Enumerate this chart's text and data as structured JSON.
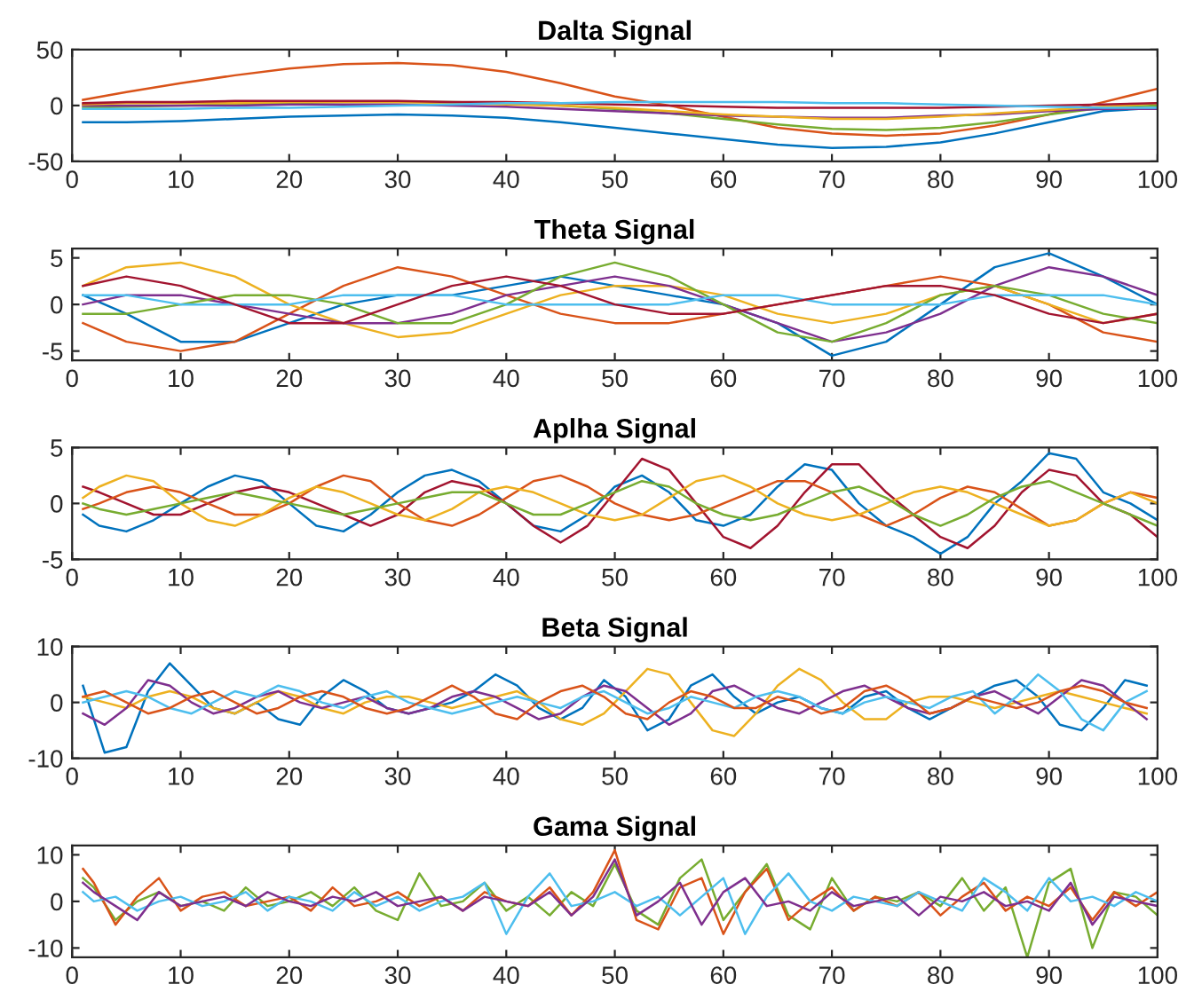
{
  "chart_data": [
    {
      "type": "line",
      "title": "Dalta Signal",
      "x": [
        1,
        5,
        10,
        15,
        20,
        25,
        30,
        35,
        40,
        45,
        50,
        55,
        60,
        65,
        70,
        75,
        80,
        85,
        90,
        95,
        100
      ],
      "xlim": [
        0,
        100
      ],
      "xticks": [
        0,
        10,
        20,
        30,
        40,
        50,
        60,
        70,
        80,
        90,
        100
      ],
      "ylim": [
        -50,
        50
      ],
      "yticks": [
        -50,
        0,
        50
      ],
      "grid": false,
      "legend": false,
      "series": [
        {
          "color": "#d95319",
          "values": [
            5,
            12,
            20,
            27,
            33,
            37,
            38,
            36,
            30,
            20,
            8,
            0,
            -10,
            -20,
            -25,
            -27,
            -25,
            -18,
            -8,
            3,
            15
          ]
        },
        {
          "color": "#0072bd",
          "values": [
            -15,
            -15,
            -14,
            -12,
            -10,
            -9,
            -8,
            -9,
            -11,
            -15,
            -20,
            -25,
            -30,
            -35,
            -38,
            -37,
            -33,
            -25,
            -15,
            -5,
            -2
          ]
        },
        {
          "color": "#77ac30",
          "values": [
            -2,
            -1,
            0,
            1,
            2,
            3,
            3,
            3,
            2,
            0,
            -3,
            -7,
            -12,
            -17,
            -21,
            -22,
            -20,
            -15,
            -8,
            -2,
            0
          ]
        },
        {
          "color": "#7e2f8e",
          "values": [
            0,
            0,
            0,
            0,
            1,
            1,
            1,
            0,
            -1,
            -3,
            -5,
            -7,
            -9,
            -10,
            -11,
            -11,
            -9,
            -8,
            -5,
            -3,
            -3
          ]
        },
        {
          "color": "#edb120",
          "values": [
            1,
            2,
            2,
            2,
            3,
            3,
            3,
            2,
            1,
            0,
            -2,
            -5,
            -8,
            -10,
            -12,
            -12,
            -10,
            -7,
            -4,
            -1,
            2
          ]
        },
        {
          "color": "#a2142f",
          "values": [
            2,
            3,
            3,
            4,
            4,
            4,
            4,
            3,
            3,
            2,
            1,
            0,
            -1,
            -2,
            -2,
            -2,
            -2,
            -1,
            0,
            1,
            2
          ]
        },
        {
          "color": "#4dbeee",
          "values": [
            -3,
            -3,
            -3,
            -2,
            -2,
            -1,
            0,
            1,
            2,
            2,
            3,
            3,
            3,
            3,
            2,
            2,
            1,
            0,
            -1,
            -2,
            -2
          ]
        }
      ]
    },
    {
      "type": "line",
      "title": "Theta Signal",
      "x": [
        1,
        5,
        10,
        15,
        20,
        25,
        30,
        35,
        40,
        45,
        50,
        55,
        60,
        65,
        70,
        75,
        80,
        85,
        90,
        95,
        100
      ],
      "xlim": [
        0,
        100
      ],
      "xticks": [
        0,
        10,
        20,
        30,
        40,
        50,
        60,
        70,
        80,
        90,
        100
      ],
      "ylim": [
        -6,
        6
      ],
      "yticks": [
        -5,
        0,
        5
      ],
      "grid": false,
      "legend": false,
      "series": [
        {
          "color": "#0072bd",
          "values": [
            1,
            -1,
            -4,
            -4,
            -2,
            0,
            1,
            1,
            2,
            3,
            2,
            1,
            0,
            -2,
            -5.5,
            -4,
            0,
            4,
            5.5,
            3,
            0
          ]
        },
        {
          "color": "#d95319",
          "values": [
            -2,
            -4,
            -5,
            -4,
            -1,
            2,
            4,
            3,
            1,
            -1,
            -2,
            -2,
            -1,
            0,
            1,
            2,
            3,
            2,
            0,
            -3,
            -4
          ]
        },
        {
          "color": "#edb120",
          "values": [
            2,
            4,
            4.5,
            3,
            0,
            -2,
            -3.5,
            -3,
            -1,
            1,
            2,
            2,
            1,
            -1,
            -2,
            -1,
            1,
            2,
            0,
            -2,
            -1
          ]
        },
        {
          "color": "#7e2f8e",
          "values": [
            0,
            1,
            1,
            0,
            -1,
            -2,
            -2,
            -1,
            1,
            2,
            3,
            2,
            0,
            -2,
            -4,
            -3,
            -1,
            2,
            4,
            3,
            1
          ]
        },
        {
          "color": "#77ac30",
          "values": [
            -1,
            -1,
            0,
            1,
            1,
            0,
            -2,
            -2,
            0,
            3,
            4.5,
            3,
            0,
            -3,
            -4,
            -2,
            1,
            2,
            1,
            -1,
            -2
          ]
        },
        {
          "color": "#4dbeee",
          "values": [
            1,
            1,
            0,
            0,
            0,
            1,
            1,
            1,
            0,
            0,
            0,
            0,
            1,
            1,
            0,
            0,
            0,
            1,
            1,
            1,
            0
          ]
        },
        {
          "color": "#a2142f",
          "values": [
            2,
            3,
            2,
            0,
            -2,
            -2,
            0,
            2,
            3,
            2,
            0,
            -1,
            -1,
            0,
            1,
            2,
            2,
            1,
            -1,
            -2,
            -1
          ]
        }
      ]
    },
    {
      "type": "line",
      "title": "Aplha Signal",
      "x": [
        1,
        2.5,
        5,
        7.5,
        10,
        12.5,
        15,
        17.5,
        20,
        22.5,
        25,
        27.5,
        30,
        32.5,
        35,
        37.5,
        40,
        42.5,
        45,
        47.5,
        50,
        52.5,
        55,
        57.5,
        60,
        62.5,
        65,
        67.5,
        70,
        72.5,
        75,
        77.5,
        80,
        82.5,
        85,
        87.5,
        90,
        92.5,
        95,
        97.5,
        100
      ],
      "xlim": [
        0,
        100
      ],
      "xticks": [
        0,
        10,
        20,
        30,
        40,
        50,
        60,
        70,
        80,
        90,
        100
      ],
      "ylim": [
        -5,
        5
      ],
      "yticks": [
        -5,
        0,
        5
      ],
      "grid": false,
      "legend": false,
      "series": [
        {
          "color": "#0072bd",
          "values": [
            -1,
            -2,
            -2.5,
            -1.5,
            0,
            1.5,
            2.5,
            2,
            0,
            -2,
            -2.5,
            -1,
            1,
            2.5,
            3,
            2,
            0,
            -2,
            -2.5,
            -1,
            1.5,
            2.5,
            1,
            -1.5,
            -2,
            -1,
            1.5,
            3.5,
            3,
            0,
            -2,
            -3,
            -4.5,
            -3,
            0,
            2,
            4.5,
            4,
            1,
            0,
            -1.5
          ]
        },
        {
          "color": "#a2142f",
          "values": [
            1.5,
            1,
            0,
            -1,
            -1,
            0,
            1,
            1.5,
            1,
            0,
            -1,
            -2,
            -1,
            1,
            2,
            1.5,
            0,
            -2,
            -3.5,
            -2,
            1,
            4,
            3,
            0,
            -3,
            -4,
            -2,
            1,
            3.5,
            3.5,
            1,
            -1,
            -3,
            -4,
            -2,
            1,
            3,
            2.5,
            0,
            -1,
            -3
          ]
        },
        {
          "color": "#d95319",
          "values": [
            -0.5,
            0,
            1,
            1.5,
            1,
            0,
            -1,
            -1,
            0,
            1.5,
            2.5,
            2,
            0,
            -1.5,
            -2,
            -1,
            0.5,
            2,
            2.5,
            1.5,
            0,
            -1,
            -1.5,
            -1,
            0,
            1,
            2,
            2,
            1,
            -1,
            -2,
            -1,
            0.5,
            1.5,
            1,
            -0.5,
            -2,
            -1.5,
            0,
            1,
            0.5
          ]
        },
        {
          "color": "#edb120",
          "values": [
            0.5,
            1.5,
            2.5,
            2,
            0,
            -1.5,
            -2,
            -1,
            0.5,
            1.5,
            1,
            0,
            -1,
            -1.5,
            -0.5,
            1,
            1.5,
            1,
            0,
            -1,
            -1.5,
            -1,
            0.5,
            2,
            2.5,
            1.5,
            0,
            -1,
            -1.5,
            -1,
            0,
            1,
            1.5,
            1,
            0,
            -1,
            -2,
            -1.5,
            0,
            1,
            0
          ]
        },
        {
          "color": "#77ac30",
          "values": [
            0,
            -0.5,
            -1,
            -0.5,
            0,
            0.5,
            1,
            0.5,
            0,
            -0.5,
            -1,
            -0.5,
            0,
            0.5,
            1,
            1,
            0,
            -1,
            -1,
            0,
            1,
            2,
            1.5,
            0,
            -1,
            -1.5,
            -1,
            0,
            1,
            1.5,
            0.5,
            -1,
            -2,
            -1,
            0.5,
            1.5,
            2,
            1,
            0,
            -1,
            -2
          ]
        }
      ]
    },
    {
      "type": "line",
      "title": "Beta Signal",
      "x": [
        1,
        3,
        5,
        7,
        9,
        11,
        13,
        15,
        17,
        19,
        21,
        23,
        25,
        27,
        29,
        31,
        33,
        35,
        37,
        39,
        41,
        43,
        45,
        47,
        49,
        51,
        53,
        55,
        57,
        59,
        61,
        63,
        65,
        67,
        69,
        71,
        73,
        75,
        77,
        79,
        81,
        83,
        85,
        87,
        89,
        91,
        93,
        95,
        97,
        99
      ],
      "xlim": [
        0,
        100
      ],
      "xticks": [
        0,
        10,
        20,
        30,
        40,
        50,
        60,
        70,
        80,
        90,
        100
      ],
      "ylim": [
        -10,
        10
      ],
      "yticks": [
        -10,
        0,
        10
      ],
      "grid": false,
      "legend": false,
      "series": [
        {
          "color": "#0072bd",
          "values": [
            3,
            -9,
            -8,
            2,
            7,
            3,
            -1,
            -2,
            0,
            -3,
            -4,
            1,
            4,
            2,
            -1,
            -2,
            -1,
            0,
            2,
            5,
            3,
            -1,
            -3,
            -1,
            4,
            1,
            -5,
            -3,
            3,
            5,
            1,
            -2,
            0,
            1,
            -1,
            -2,
            1,
            2,
            -1,
            -3,
            -1,
            1,
            3,
            4,
            1,
            -4,
            -5,
            -1,
            4,
            3
          ]
        },
        {
          "color": "#edb120",
          "values": [
            1,
            0,
            -1,
            1,
            2,
            1,
            -1,
            -2,
            0,
            2,
            1,
            -1,
            -2,
            0,
            1,
            1,
            0,
            -1,
            0,
            1,
            2,
            0,
            -3,
            -4,
            -2,
            2,
            6,
            5,
            0,
            -5,
            -6,
            -2,
            3,
            6,
            4,
            0,
            -3,
            -3,
            0,
            1,
            1,
            0,
            -1,
            0,
            1,
            2,
            1,
            0,
            -1,
            -2
          ]
        },
        {
          "color": "#7e2f8e",
          "values": [
            -2,
            -4,
            -1,
            4,
            3,
            0,
            -2,
            -1,
            1,
            2,
            0,
            -1,
            0,
            1,
            -1,
            -2,
            -1,
            1,
            2,
            1,
            -1,
            -3,
            -2,
            1,
            3,
            2,
            -1,
            -4,
            -2,
            2,
            3,
            1,
            -1,
            -2,
            0,
            2,
            3,
            1,
            -1,
            -2,
            -1,
            1,
            2,
            0,
            -2,
            1,
            4,
            3,
            0,
            -3
          ]
        },
        {
          "color": "#4dbeee",
          "values": [
            0,
            1,
            2,
            1,
            -1,
            -2,
            0,
            2,
            1,
            3,
            2,
            0,
            -1,
            1,
            2,
            0,
            -1,
            -2,
            -1,
            0,
            1,
            0,
            -1,
            1,
            2,
            0,
            -2,
            -1,
            1,
            0,
            -1,
            1,
            2,
            1,
            -1,
            -2,
            0,
            1,
            0,
            -1,
            1,
            2,
            -2,
            1,
            5,
            2,
            -3,
            -5,
            0,
            2
          ]
        },
        {
          "color": "#d95319",
          "values": [
            1,
            2,
            0,
            -2,
            -1,
            1,
            2,
            0,
            -2,
            -1,
            1,
            2,
            1,
            -1,
            -2,
            -1,
            1,
            3,
            1,
            -2,
            -3,
            0,
            2,
            3,
            1,
            -2,
            -3,
            0,
            2,
            1,
            -1,
            -1,
            1,
            0,
            -2,
            -1,
            2,
            3,
            1,
            -2,
            -1,
            1,
            0,
            -1,
            0,
            2,
            3,
            2,
            0,
            -1
          ]
        }
      ]
    },
    {
      "type": "line",
      "title": "Gama Signal",
      "x": [
        1,
        2,
        4,
        6,
        8,
        10,
        12,
        14,
        16,
        18,
        20,
        22,
        24,
        26,
        28,
        30,
        32,
        34,
        36,
        38,
        40,
        42,
        44,
        46,
        48,
        50,
        52,
        54,
        56,
        58,
        60,
        62,
        64,
        66,
        68,
        70,
        72,
        74,
        76,
        78,
        80,
        82,
        84,
        86,
        88,
        90,
        92,
        94,
        96,
        98,
        100
      ],
      "xlim": [
        0,
        100
      ],
      "xticks": [
        0,
        10,
        20,
        30,
        40,
        50,
        60,
        70,
        80,
        90,
        100
      ],
      "ylim": [
        -12,
        12
      ],
      "yticks": [
        -10,
        0,
        10
      ],
      "grid": false,
      "legend": false,
      "series": [
        {
          "color": "#77ac30",
          "values": [
            5,
            3,
            -4,
            0,
            2,
            -1,
            0,
            -2,
            3,
            -1,
            0,
            2,
            -1,
            3,
            -2,
            -4,
            6,
            -1,
            0,
            4,
            -2,
            1,
            -3,
            2,
            -1,
            8,
            -2,
            -5,
            5,
            9,
            -4,
            2,
            8,
            -3,
            -6,
            5,
            -2,
            1,
            0,
            2,
            -1,
            5,
            -2,
            3,
            -12,
            4,
            7,
            -10,
            2,
            1,
            -3
          ]
        },
        {
          "color": "#d95319",
          "values": [
            7,
            4,
            -5,
            1,
            5,
            -2,
            1,
            2,
            -1,
            0,
            1,
            -2,
            3,
            -1,
            0,
            2,
            -1,
            1,
            -2,
            2,
            0,
            -1,
            3,
            -3,
            2,
            11,
            -4,
            -6,
            3,
            5,
            -7,
            2,
            7,
            -4,
            0,
            3,
            -2,
            1,
            -1,
            2,
            -3,
            1,
            4,
            -2,
            1,
            -1,
            3,
            -4,
            2,
            -1,
            2
          ]
        },
        {
          "color": "#4dbeee",
          "values": [
            2,
            0,
            1,
            -2,
            0,
            1,
            -1,
            0,
            2,
            -2,
            1,
            0,
            -2,
            2,
            -1,
            1,
            -2,
            0,
            1,
            4,
            -7,
            1,
            6,
            -1,
            0,
            2,
            -1,
            1,
            -3,
            1,
            5,
            -7,
            1,
            6,
            0,
            -2,
            1,
            0,
            -1,
            2,
            0,
            -2,
            5,
            2,
            -2,
            5,
            0,
            1,
            -1,
            2,
            0
          ]
        },
        {
          "color": "#7e2f8e",
          "values": [
            4,
            2,
            -1,
            -4,
            2,
            -1,
            0,
            1,
            -1,
            2,
            0,
            -1,
            1,
            0,
            2,
            -1,
            0,
            1,
            -2,
            1,
            0,
            -1,
            2,
            -3,
            1,
            9,
            -3,
            0,
            4,
            -5,
            2,
            5,
            -1,
            0,
            -2,
            2,
            -1,
            0,
            1,
            -3,
            1,
            0,
            2,
            -1,
            0,
            -2,
            4,
            -5,
            1,
            0,
            -1
          ]
        }
      ]
    }
  ]
}
